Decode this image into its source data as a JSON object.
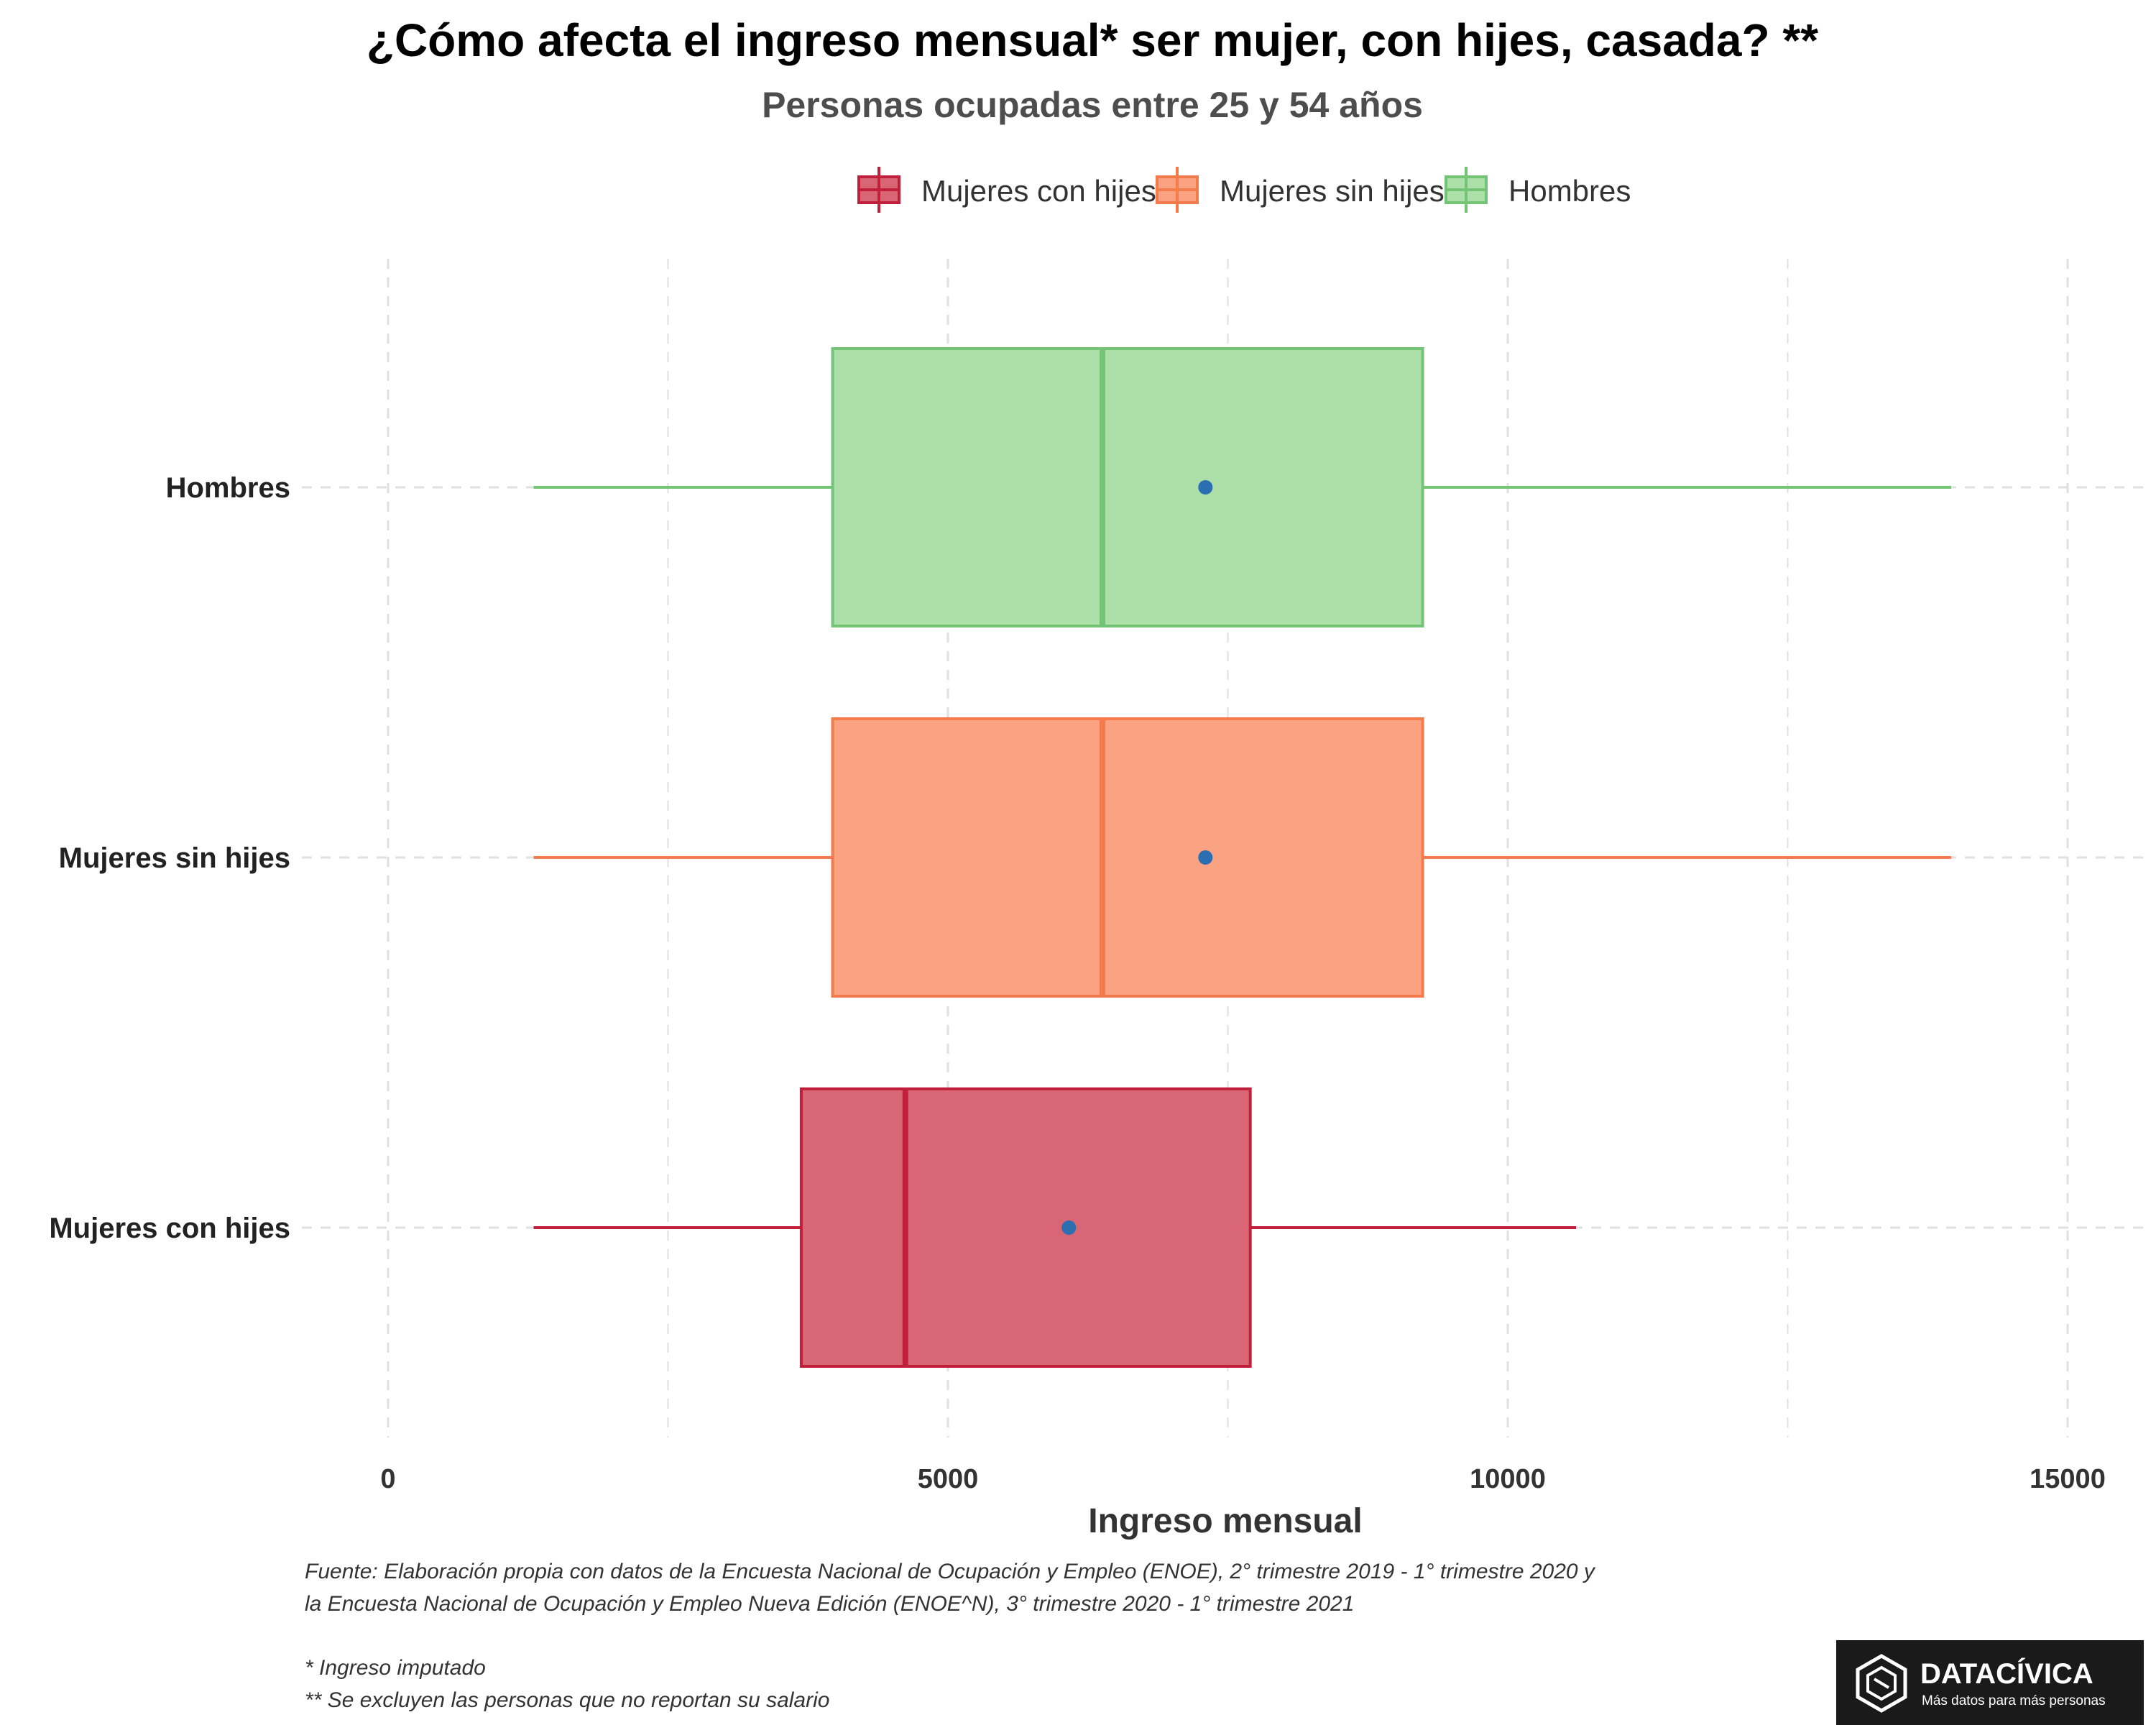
{
  "chart_data": {
    "type": "boxplot",
    "orientation": "horizontal",
    "title": "¿Cómo afecta el ingreso mensual* ser mujer, con hijes, casada? **",
    "subtitle": "Personas ocupadas entre 25 y 54 años",
    "xlabel": "Ingreso mensual",
    "ylabel": "",
    "xlim": [
      -750,
      15600
    ],
    "x_ticks": [
      0,
      5000,
      10000,
      15000
    ],
    "x_tick_labels": [
      "0",
      "5000",
      "10000",
      "15000"
    ],
    "grid": true,
    "legend_position": "top",
    "legend": [
      "Mujeres con hijes",
      "Mujeres sin hijes",
      "Hombres"
    ],
    "series": [
      {
        "name": "Hombres",
        "whisker_low": 1300,
        "q1": 3970,
        "median": 6380,
        "q3": 9240,
        "whisker_high": 13960,
        "mean": 7300,
        "color": "#74c476",
        "fill": "#addfa8"
      },
      {
        "name": "Mujeres sin hijes",
        "whisker_low": 1300,
        "q1": 3970,
        "median": 6380,
        "q3": 9240,
        "whisker_high": 13960,
        "mean": 7300,
        "color": "#f47c4c",
        "fill": "#fba283"
      },
      {
        "name": "Mujeres con hijes",
        "whisker_low": 1300,
        "q1": 3690,
        "median": 4620,
        "q3": 7700,
        "whisker_high": 10610,
        "mean": 6080,
        "color": "#c21f3b",
        "fill": "#d96675"
      }
    ],
    "mean_color": "#2c6fb0"
  },
  "caption": {
    "source_line1": "Fuente: Elaboración propia con datos de la Encuesta Nacional de Ocupación y Empleo (ENOE), 2° trimestre 2019 - 1° trimestre 2020 y",
    "source_line2": "la Encuesta Nacional de Ocupación y Empleo Nueva Edición (ENOE^N), 3° trimestre 2020 - 1° trimestre 2021",
    "note1": "* Ingreso imputado",
    "note2": " ** Se excluyen las personas que no reportan su salario"
  },
  "logo": {
    "name": "DATACÍVICA",
    "tagline": "Más datos para más personas",
    "icon": "datacivica-hexagon-icon"
  }
}
